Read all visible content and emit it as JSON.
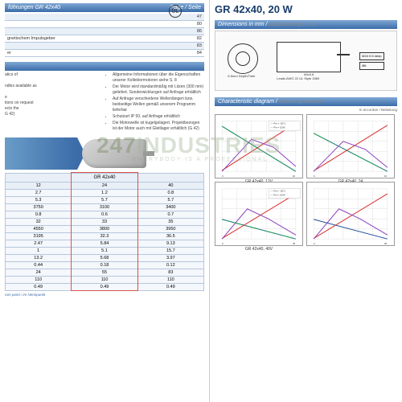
{
  "ul_mark": "UL",
  "watermark_main": "247",
  "watermark_main2": "INDUSTRIES",
  "watermark_sub": "EVERYBODY IS A PROFESSIONAL",
  "left": {
    "gearbox_header": "führungen GR 42x40",
    "gearbox_pagecol": "Page / Seite",
    "gearbox_rows": [
      {
        "label": "",
        "page": "47"
      },
      {
        "label": "",
        "page": "80"
      },
      {
        "label": "",
        "page": "86"
      },
      {
        "label": "gnetischem Impulsgeber",
        "page": "82"
      },
      {
        "label": "",
        "page": "83"
      },
      {
        "label": "er",
        "page": "84"
      }
    ],
    "info_left": [
      "atics of",
      "",
      "ndles available as",
      "",
      "e",
      "tions on request",
      "ects the",
      "G 42)"
    ],
    "info_right": [
      "Allgemeine Informationen über die Eigenschaften unserer Kollektormotoren siehe S. 8",
      "Der Motor wird standardmäßig mit Litzen (300 mm) geliefert. Sonderwicklungen auf Anfrage erhältlich",
      "Auf Anfrage verschiedene Wellenlängen bzw. beidseitige Wellen gemäß unserem Programm lieferbar",
      "Schutzart IP 50, auf Anfrage erhältlich",
      "Die Motorwelle ist kugelgelagert. Projektbezogen ist der Motor auch mit Gleitlager erhältlich (G 42)"
    ],
    "data_table": {
      "header": "GR 42x40",
      "cols3": [
        "12",
        "24",
        "40"
      ],
      "rows": [
        [
          "2.7",
          "1.2",
          "0.8"
        ],
        [
          "5.3",
          "5.7",
          "5.7"
        ],
        [
          "3750",
          "3100",
          "3400"
        ],
        [
          "0.8",
          "0.6",
          "0.7"
        ],
        [
          "32",
          "33",
          "35"
        ],
        [
          "4550",
          "3800",
          "3950"
        ],
        [
          "3195",
          "32.3",
          "36.5"
        ],
        [
          "2.47",
          "5.84",
          "9.13"
        ],
        [
          "1",
          "5.1",
          "15.7"
        ],
        [
          "13.2",
          "5.68",
          "3.97"
        ],
        [
          "0.44",
          "0.18",
          "0.12"
        ],
        [
          "24",
          "55",
          "83"
        ],
        [
          "110",
          "110",
          "110"
        ],
        [
          "0.49",
          "0.49",
          "0.49"
        ]
      ],
      "highlight_col": 1
    },
    "footnote": "rom point / im Nennpunkt"
  },
  "right": {
    "title": "GR 42x40, 20 W",
    "dim_header_en": "Dimensions in mm",
    "dim_header_de": "Maßzeichnung in mm",
    "dim_labels": {
      "diameter": "Ø42",
      "length": "65±0.8",
      "shaft": "6.5mm Depth/Tiefe",
      "leads": "Leads AWG 22 UL Style 1569"
    },
    "char_header_en": "Characteristic diagram",
    "char_header_de": "Belastungskennlinien",
    "char_note": "In accordan / Belastung",
    "charts": [
      {
        "title": "GR 42x40, 12V",
        "legend": [
          "Pin = -20°C",
          "Pin = 100K"
        ],
        "xlim": [
          0,
          10
        ],
        "ylim_left": [
          0,
          5000
        ],
        "ylim_right": [
          0,
          1.5
        ],
        "grid_color": "#cccccc",
        "lines": [
          {
            "color": "#1f4e9c",
            "pts": [
              [
                0,
                4500
              ],
              [
                10,
                0
              ]
            ],
            "scale": 5000
          },
          {
            "color": "#1cb04a",
            "pts": [
              [
                0,
                4500
              ],
              [
                10,
                0
              ]
            ],
            "scale": 5000,
            "dash": true
          },
          {
            "color": "#d92b2b",
            "pts": [
              [
                0,
                100
              ],
              [
                10,
                4800
              ]
            ],
            "scale": 5000
          },
          {
            "color": "#8a3fbf",
            "pts": [
              [
                0,
                0
              ],
              [
                4,
                3200
              ],
              [
                7,
                2400
              ],
              [
                10,
                500
              ]
            ],
            "scale": 5000
          }
        ]
      },
      {
        "title": "GR 42x40, 24",
        "legend": [],
        "xlim": [
          0,
          10
        ],
        "ylim_left": [
          0,
          5000
        ],
        "grid_color": "#cccccc",
        "lines": [
          {
            "color": "#1f4e9c",
            "pts": [
              [
                0,
                3800
              ],
              [
                10,
                0
              ]
            ],
            "scale": 5000
          },
          {
            "color": "#1cb04a",
            "pts": [
              [
                0,
                3800
              ],
              [
                10,
                0
              ]
            ],
            "scale": 5000,
            "dash": true
          },
          {
            "color": "#d92b2b",
            "pts": [
              [
                0,
                50
              ],
              [
                10,
                4600
              ]
            ],
            "scale": 5000
          },
          {
            "color": "#8a3fbf",
            "pts": [
              [
                0,
                0
              ],
              [
                4,
                3000
              ],
              [
                7,
                2200
              ],
              [
                10,
                400
              ]
            ],
            "scale": 5000
          }
        ]
      },
      {
        "title": "GR 42x40, 40V",
        "legend": [
          "Pin = -20°C",
          "Pin = 100K"
        ],
        "xlim": [
          0,
          35
        ],
        "ylim_left": [
          0,
          10000
        ],
        "grid_color": "#cccccc",
        "lines": [
          {
            "color": "#1f4e9c",
            "pts": [
              [
                0,
                3900
              ],
              [
                35,
                0
              ]
            ],
            "scale": 10000
          },
          {
            "color": "#1cb04a",
            "pts": [
              [
                0,
                3900
              ],
              [
                35,
                0
              ]
            ],
            "scale": 10000,
            "dash": true
          },
          {
            "color": "#d92b2b",
            "pts": [
              [
                0,
                100
              ],
              [
                35,
                9000
              ]
            ],
            "scale": 10000
          },
          {
            "color": "#8a3fbf",
            "pts": [
              [
                0,
                0
              ],
              [
                12,
                6000
              ],
              [
                22,
                4000
              ],
              [
                35,
                800
              ]
            ],
            "scale": 10000
          }
        ]
      },
      {
        "title": "",
        "legend": [],
        "xlim": [
          0,
          35
        ],
        "ylim_left": [
          0,
          10000
        ],
        "grid_color": "#cccccc",
        "lines": [
          {
            "color": "#1f4e9c",
            "pts": [
              [
                0,
                3900
              ],
              [
                35,
                0
              ]
            ],
            "scale": 10000
          },
          {
            "color": "#d92b2b",
            "pts": [
              [
                0,
                100
              ],
              [
                35,
                9000
              ]
            ],
            "scale": 10000
          },
          {
            "color": "#8a3fbf",
            "pts": [
              [
                0,
                0
              ],
              [
                12,
                6000
              ],
              [
                22,
                4000
              ],
              [
                35,
                800
              ]
            ],
            "scale": 10000
          }
        ]
      }
    ]
  },
  "colors": {
    "hdr_blue": "#3b6ca8",
    "red_box": "#d9534f"
  }
}
